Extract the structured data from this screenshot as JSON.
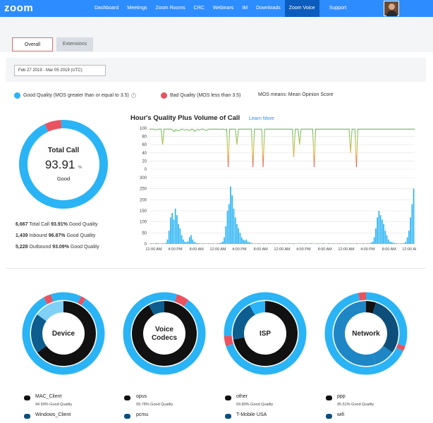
{
  "app": {
    "logo": "zoom"
  },
  "nav": {
    "items": [
      "Dashboard",
      "Meetings",
      "Zoom Rooms",
      "CRC",
      "Webinars",
      "IM",
      "Downloads",
      "Zoom Voice",
      "Support"
    ],
    "active": "Zoom Voice"
  },
  "tabs": {
    "overall": "Overall",
    "extensions": "Extensions"
  },
  "filter": {
    "date_range": "Feb 27 2019 - Mar 05 2019 (UTC)"
  },
  "legend": {
    "good": "Good Quality (MOS greater than or equal to 3.5)",
    "bad": "Bad Quality (MOS less than 3.5)",
    "mos": "MOS means: Mean Opinion Score",
    "good_color": "#2ab4f5",
    "bad_color": "#e9525f"
  },
  "total_call": {
    "title": "Total Call",
    "value": "93.91",
    "unit": "%",
    "status": "Good",
    "good_fraction": 0.9391
  },
  "stats": [
    {
      "count": "6,667",
      "label": "Total Call",
      "pct": "93.91%",
      "suffix": "Good Quality"
    },
    {
      "count": "1,439",
      "label": "Inbound",
      "pct": "96.87%",
      "suffix": "Good Quality"
    },
    {
      "count": "5,228",
      "label": "Outbound",
      "pct": "93.09%",
      "suffix": "Good Quality"
    }
  ],
  "hourly": {
    "title": "Hour's Quality Plus Volume of Call",
    "learn_more": "Learn More"
  },
  "chart_data": [
    {
      "type": "line",
      "title": "",
      "ylim": [
        0,
        100
      ],
      "yticks": [
        "100",
        "80",
        "60",
        "40",
        "20",
        "0"
      ],
      "values": [
        98,
        98,
        98,
        98,
        96,
        97,
        98,
        98,
        98,
        60,
        98,
        98,
        98,
        98,
        98,
        98,
        95,
        92,
        97,
        95,
        94,
        96,
        98,
        97,
        96,
        96,
        97,
        95,
        96,
        98,
        97,
        92,
        96,
        97,
        96,
        97,
        98,
        98,
        96,
        95,
        97,
        98,
        98,
        98,
        98,
        98,
        98,
        98,
        98,
        97,
        98,
        98,
        96,
        98,
        5,
        98,
        98,
        98,
        98,
        98,
        60,
        98,
        98,
        98,
        98,
        98,
        98,
        98,
        98,
        98,
        98,
        5,
        98,
        98,
        98,
        98,
        98,
        98,
        5,
        98,
        98,
        98,
        98,
        98,
        98,
        98,
        98,
        98,
        98,
        98,
        98,
        98,
        98,
        98,
        98,
        98,
        98,
        98,
        98,
        30,
        98,
        98,
        98,
        60,
        98,
        98,
        98,
        98,
        98,
        98,
        98,
        98,
        98,
        5,
        98,
        98,
        98,
        98,
        98,
        98,
        98,
        98,
        98,
        98,
        98,
        98,
        98,
        98,
        98,
        98,
        98,
        98,
        98,
        98,
        98,
        98,
        98,
        98,
        40,
        98,
        98,
        98,
        5,
        98,
        98,
        98,
        98,
        98,
        98,
        98,
        98,
        98,
        98,
        98,
        98,
        98,
        98,
        98,
        98,
        98,
        98,
        98,
        98,
        98,
        98,
        98,
        98,
        98,
        98,
        98,
        98,
        98,
        98,
        98,
        98,
        98,
        98,
        98,
        98,
        98,
        98,
        98,
        98
      ]
    },
    {
      "type": "bar",
      "title": "",
      "ylim": [
        0,
        300
      ],
      "yticks": [
        "300",
        "250",
        "200",
        "150",
        "100",
        "50",
        "0"
      ],
      "xticks": [
        "12:00 AM",
        "4:00 PM",
        "8:00 AM",
        "12:00 AM",
        "4:00 PM",
        "8:00 AM",
        "12:00 AM",
        "4:00 PM",
        "8:00 AM",
        "12:00 AM",
        "4:00 PM",
        "8:00 AM",
        "12:00 AM"
      ],
      "values": [
        2,
        3,
        2,
        2,
        4,
        3,
        2,
        2,
        3,
        2,
        5,
        20,
        60,
        120,
        140,
        110,
        160,
        130,
        90,
        70,
        40,
        20,
        10,
        8,
        12,
        30,
        40,
        20,
        10,
        5,
        4,
        3,
        2,
        2,
        3,
        2,
        2,
        3,
        2,
        2,
        3,
        2,
        2,
        3,
        4,
        6,
        10,
        30,
        80,
        150,
        180,
        260,
        220,
        160,
        120,
        90,
        70,
        50,
        30,
        20,
        15,
        20,
        10,
        8,
        5,
        3,
        2,
        2,
        2,
        3,
        2,
        2,
        3,
        2,
        2,
        3,
        2,
        2,
        2,
        3,
        2,
        2,
        2,
        2,
        3,
        2,
        2,
        2,
        3,
        2,
        2,
        3,
        2,
        2,
        2,
        3,
        2,
        2,
        2,
        3,
        2,
        2,
        3,
        2,
        2,
        2,
        3,
        2,
        2,
        2,
        3,
        2,
        2,
        3,
        2,
        2,
        3,
        2,
        2,
        2,
        3,
        2,
        2,
        2,
        3,
        2,
        2,
        3,
        2,
        2,
        2,
        3,
        2,
        2,
        2,
        3,
        2,
        2,
        3,
        2,
        5,
        10,
        30,
        70,
        120,
        150,
        130,
        110,
        90,
        60,
        40,
        20,
        10,
        8,
        6,
        4,
        3,
        2,
        2,
        3,
        2,
        4,
        10,
        30,
        60,
        120,
        180,
        250
      ]
    }
  ],
  "donuts": [
    {
      "label_lines": [
        "Device"
      ],
      "outer": [
        {
          "v": 0.07,
          "c": "#2ab4f5"
        },
        {
          "v": 0.02,
          "c": "#e9525f"
        },
        {
          "v": 0.83,
          "c": "#2ab4f5"
        },
        {
          "v": 0.03,
          "c": "#e9525f"
        },
        {
          "v": 0.05,
          "c": "#2ab4f5"
        }
      ],
      "inner": [
        {
          "v": 0.65,
          "c": "#111111"
        },
        {
          "v": 0.2,
          "c": "#0d5d8f"
        },
        {
          "v": 0.15,
          "c": "#7fd0f7"
        }
      ],
      "legend": [
        {
          "name": "MAC_Client",
          "sub": "94.99% Good Quality",
          "color": "#111111"
        },
        {
          "name": "Windows_Client",
          "color": "#0d4f7a"
        }
      ]
    },
    {
      "label_lines": [
        "Voice",
        "Codecs"
      ],
      "outer": [
        {
          "v": 0.05,
          "c": "#2ab4f5"
        },
        {
          "v": 0.05,
          "c": "#e9525f"
        },
        {
          "v": 0.9,
          "c": "#2ab4f5"
        }
      ],
      "inner": [
        {
          "v": 0.92,
          "c": "#111111"
        },
        {
          "v": 0.08,
          "c": "#0d5d8f"
        }
      ],
      "legend": [
        {
          "name": "opus",
          "sub": "93.78% Good Quality",
          "color": "#111111"
        },
        {
          "name": "pcmu",
          "color": "#0d4f7a"
        }
      ]
    },
    {
      "label_lines": [
        "ISP"
      ],
      "outer": [
        {
          "v": 0.7,
          "c": "#2ab4f5"
        },
        {
          "v": 0.04,
          "c": "#e9525f"
        },
        {
          "v": 0.26,
          "c": "#2ab4f5"
        }
      ],
      "inner": [
        {
          "v": 0.72,
          "c": "#111111"
        },
        {
          "v": 0.2,
          "c": "#0d5d8f"
        },
        {
          "v": 0.08,
          "c": "#2ab4f5"
        }
      ],
      "legend": [
        {
          "name": "other",
          "sub": "93.89% Good Quality",
          "color": "#111111"
        },
        {
          "name": "T-Mobile USA",
          "color": "#0d4f7a"
        }
      ]
    },
    {
      "label_lines": [
        "Network"
      ],
      "outer": [
        {
          "v": 0.3,
          "c": "#2ab4f5"
        },
        {
          "v": 0.02,
          "c": "#e9525f"
        },
        {
          "v": 0.65,
          "c": "#2ab4f5"
        },
        {
          "v": 0.03,
          "c": "#e9525f"
        }
      ],
      "inner": [
        {
          "v": 0.05,
          "c": "#111111"
        },
        {
          "v": 0.3,
          "c": "#0d4f7a"
        },
        {
          "v": 0.1,
          "c": "#1f86c6"
        },
        {
          "v": 0.55,
          "c": "#1f86c6"
        }
      ],
      "legend": [
        {
          "name": "ppp",
          "sub": "95.51% Good Quality",
          "color": "#111111"
        },
        {
          "name": "wifi",
          "color": "#0d4f7a"
        }
      ]
    }
  ]
}
